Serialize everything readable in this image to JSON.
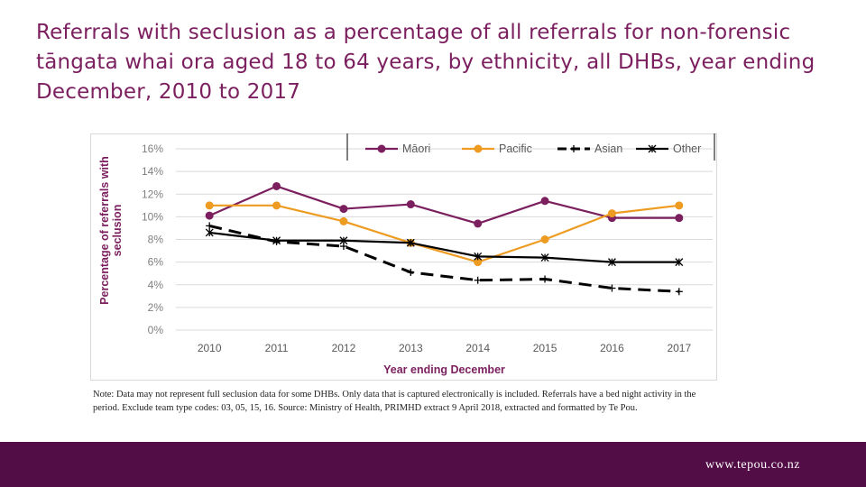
{
  "title": "Referrals with seclusion as a percentage of all referrals for non-forensic tāngata whai ora aged 18 to 64 years, by ethnicity, all DHBs, year ending December, 2010 to 2017",
  "note": "Note: Data may not represent full seclusion data for some DHBs. Only data that is captured electronically is included. Referrals have a bed night activity in the period. Exclude team type codes: 03, 05, 15, 16.  Source: Ministry of Health, PRIMHD extract 9 April 2018, extracted and formatted by Te Pou.",
  "footer": {
    "url": "www.tepou.co.nz"
  },
  "colors": {
    "title": "#7b1f5f",
    "footer": "#530d46"
  },
  "chart_data": {
    "type": "line",
    "title": "",
    "xlabel": "Year ending December",
    "ylabel": "Percentage of referrals with seclusion",
    "categories": [
      "2010",
      "2011",
      "2012",
      "2013",
      "2014",
      "2015",
      "2016",
      "2017"
    ],
    "y_ticks": [
      "0%",
      "2%",
      "4%",
      "6%",
      "8%",
      "10%",
      "12%",
      "14%",
      "16%"
    ],
    "ylim": [
      0,
      16
    ],
    "grid": true,
    "legend_position": "top",
    "series": [
      {
        "name": "Māori",
        "values": [
          10.1,
          12.7,
          10.7,
          11.1,
          9.4,
          11.4,
          9.9,
          9.9
        ],
        "color": "#7b1f5f",
        "style": "solid",
        "marker": "circle"
      },
      {
        "name": "Pacific",
        "values": [
          11.0,
          11.0,
          9.6,
          7.7,
          6.0,
          8.0,
          10.3,
          11.0
        ],
        "color": "#ed9b21",
        "style": "solid",
        "marker": "circle"
      },
      {
        "name": "Asian",
        "values": [
          9.2,
          7.8,
          7.4,
          5.1,
          4.4,
          4.5,
          3.7,
          3.4
        ],
        "color": "#000000",
        "style": "dashed",
        "marker": "plus"
      },
      {
        "name": "Other",
        "values": [
          8.6,
          7.9,
          7.9,
          7.7,
          6.5,
          6.4,
          6.0,
          6.0
        ],
        "color": "#000000",
        "style": "solid",
        "marker": "star"
      }
    ]
  }
}
